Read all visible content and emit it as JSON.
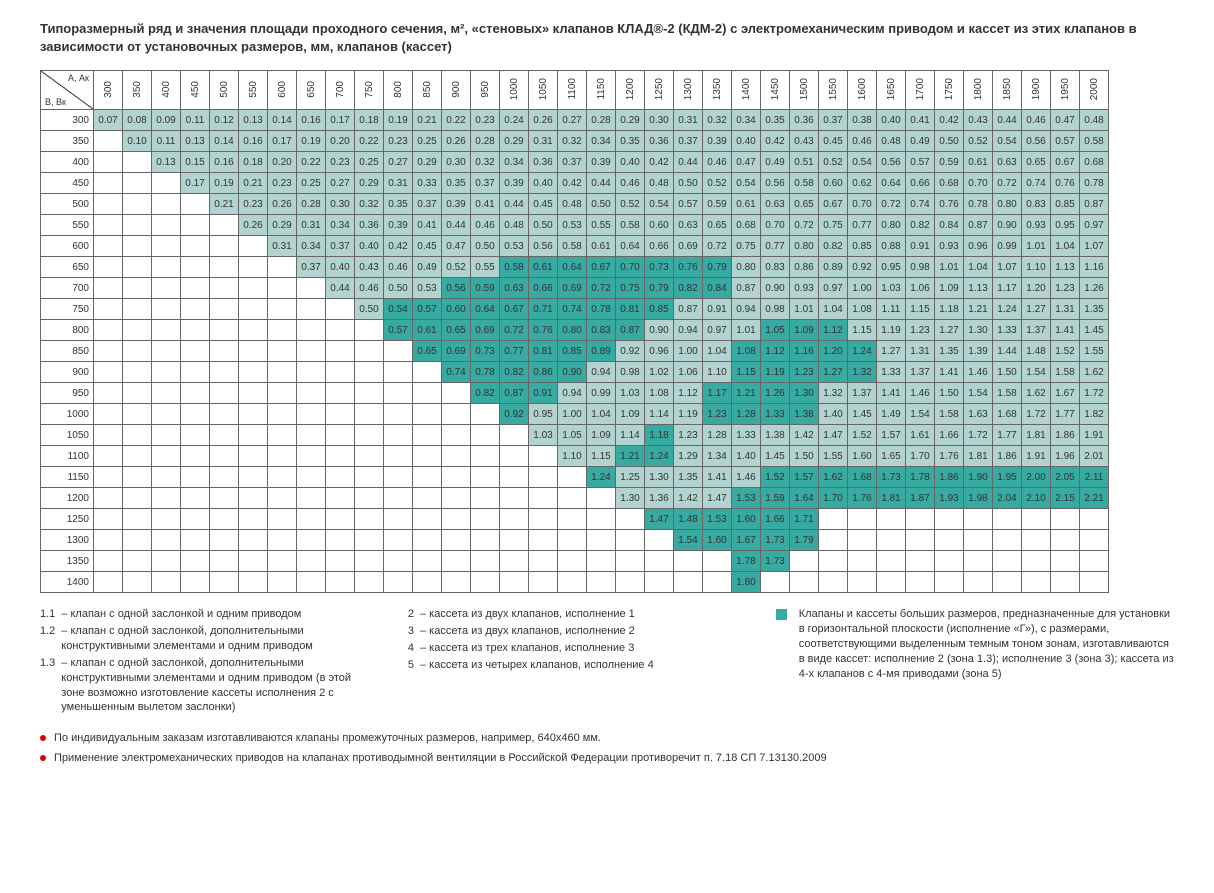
{
  "title": "Типоразмерный ряд и значения площади проходного сечения, м², «стеновых» клапанов КЛАД®-2 (КДМ-2) с электромеханическим приводом и кассет из этих клапанов в зависимости от установочных размеров, мм, клапанов (кассет)",
  "corner": {
    "top": "А, Ак",
    "bottom": "В, Вк"
  },
  "colors": {
    "light": "#b2d3cf",
    "dark": "#37aaa1",
    "border": "#666",
    "boundary": "#000"
  },
  "cols": [
    300,
    350,
    400,
    450,
    500,
    550,
    600,
    650,
    700,
    750,
    800,
    850,
    900,
    950,
    1000,
    1050,
    1100,
    1150,
    1200,
    1250,
    1300,
    1350,
    1400,
    1450,
    1500,
    1550,
    1600,
    1650,
    1700,
    1750,
    1800,
    1850,
    1900,
    1950,
    2000
  ],
  "rows": [
    300,
    350,
    400,
    450,
    500,
    550,
    600,
    650,
    700,
    750,
    800,
    850,
    900,
    950,
    1000,
    1050,
    1100,
    1150,
    1200,
    1250,
    1300,
    1350,
    1400
  ],
  "values": {
    "300": [
      0.07,
      0.08,
      0.09,
      0.11,
      0.12,
      0.13,
      0.14,
      0.16,
      0.17,
      0.18,
      0.19,
      0.21,
      0.22,
      0.23,
      0.24,
      0.26,
      0.27,
      0.28,
      0.29,
      0.3,
      0.31,
      0.32,
      0.34,
      0.35,
      0.36,
      0.37,
      0.38,
      0.4,
      0.41,
      0.42,
      0.43,
      0.44,
      0.46,
      0.47,
      0.48
    ],
    "350": [
      null,
      0.1,
      0.11,
      0.13,
      0.14,
      0.16,
      0.17,
      0.19,
      0.2,
      0.22,
      0.23,
      0.25,
      0.26,
      0.28,
      0.29,
      0.31,
      0.32,
      0.34,
      0.35,
      0.36,
      0.37,
      0.39,
      0.4,
      0.42,
      0.43,
      0.45,
      0.46,
      0.48,
      0.49,
      0.5,
      0.52,
      0.54,
      0.56,
      0.57,
      0.58
    ],
    "400": [
      null,
      null,
      0.13,
      0.15,
      0.16,
      0.18,
      0.2,
      0.22,
      0.23,
      0.25,
      0.27,
      0.29,
      0.3,
      0.32,
      0.34,
      0.36,
      0.37,
      0.39,
      0.4,
      0.42,
      0.44,
      0.46,
      0.47,
      0.49,
      0.51,
      0.52,
      0.54,
      0.56,
      0.57,
      0.59,
      0.61,
      0.63,
      0.65,
      0.67,
      0.68
    ],
    "450": [
      null,
      null,
      null,
      0.17,
      0.19,
      0.21,
      0.23,
      0.25,
      0.27,
      0.29,
      0.31,
      0.33,
      0.35,
      0.37,
      0.39,
      0.4,
      0.42,
      0.44,
      0.46,
      0.48,
      0.5,
      0.52,
      0.54,
      0.56,
      0.58,
      0.6,
      0.62,
      0.64,
      0.66,
      0.68,
      0.7,
      0.72,
      0.74,
      0.76,
      0.78
    ],
    "500": [
      null,
      null,
      null,
      null,
      0.21,
      0.23,
      0.26,
      0.28,
      0.3,
      0.32,
      0.35,
      0.37,
      0.39,
      0.41,
      0.44,
      0.45,
      0.48,
      0.5,
      0.52,
      0.54,
      0.57,
      0.59,
      0.61,
      0.63,
      0.65,
      0.67,
      0.7,
      0.72,
      0.74,
      0.76,
      0.78,
      0.8,
      0.83,
      0.85,
      0.87
    ],
    "550": [
      null,
      null,
      null,
      null,
      null,
      0.26,
      0.29,
      0.31,
      0.34,
      0.36,
      0.39,
      0.41,
      0.44,
      0.46,
      0.48,
      0.5,
      0.53,
      0.55,
      0.58,
      0.6,
      0.63,
      0.65,
      0.68,
      0.7,
      0.72,
      0.75,
      0.77,
      0.8,
      0.82,
      0.84,
      0.87,
      0.9,
      0.93,
      0.95,
      0.97
    ],
    "600": [
      null,
      null,
      null,
      null,
      null,
      null,
      0.31,
      0.34,
      0.37,
      0.4,
      0.42,
      0.45,
      0.47,
      0.5,
      0.53,
      0.56,
      0.58,
      0.61,
      0.64,
      0.66,
      0.69,
      0.72,
      0.75,
      0.77,
      0.8,
      0.82,
      0.85,
      0.88,
      0.91,
      0.93,
      0.96,
      0.99,
      1.01,
      1.04,
      1.07
    ],
    "650": [
      null,
      null,
      null,
      null,
      null,
      null,
      null,
      0.37,
      0.4,
      0.43,
      0.46,
      0.49,
      0.52,
      0.55,
      0.58,
      0.61,
      0.64,
      0.67,
      0.7,
      0.73,
      0.76,
      0.79,
      0.8,
      0.83,
      0.86,
      0.89,
      0.92,
      0.95,
      0.98,
      1.01,
      1.04,
      1.07,
      1.1,
      1.13,
      1.16
    ],
    "700": [
      null,
      null,
      null,
      null,
      null,
      null,
      null,
      null,
      0.44,
      0.46,
      0.5,
      0.53,
      0.56,
      0.59,
      0.63,
      0.66,
      0.69,
      0.72,
      0.75,
      0.79,
      0.82,
      0.84,
      0.87,
      0.9,
      0.93,
      0.97,
      1.0,
      1.03,
      1.06,
      1.09,
      1.13,
      1.17,
      1.2,
      1.23,
      1.26
    ],
    "750": [
      null,
      null,
      null,
      null,
      null,
      null,
      null,
      null,
      null,
      0.5,
      0.54,
      0.57,
      0.6,
      0.64,
      0.67,
      0.71,
      0.74,
      0.78,
      0.81,
      0.85,
      0.87,
      0.91,
      0.94,
      0.98,
      1.01,
      1.04,
      1.08,
      1.11,
      1.15,
      1.18,
      1.21,
      1.24,
      1.27,
      1.31,
      1.35
    ],
    "800": [
      null,
      null,
      null,
      null,
      null,
      null,
      null,
      null,
      null,
      null,
      0.57,
      0.61,
      0.65,
      0.69,
      0.72,
      0.76,
      0.8,
      0.83,
      0.87,
      0.9,
      0.94,
      0.97,
      1.01,
      1.05,
      1.09,
      1.12,
      1.15,
      1.19,
      1.23,
      1.27,
      1.3,
      1.33,
      1.37,
      1.41,
      1.45
    ],
    "850": [
      null,
      null,
      null,
      null,
      null,
      null,
      null,
      null,
      null,
      null,
      null,
      0.65,
      0.69,
      0.73,
      0.77,
      0.81,
      0.85,
      0.89,
      0.92,
      0.96,
      1.0,
      1.04,
      1.08,
      1.12,
      1.16,
      1.2,
      1.24,
      1.27,
      1.31,
      1.35,
      1.39,
      1.44,
      1.48,
      1.52,
      1.55
    ],
    "900": [
      null,
      null,
      null,
      null,
      null,
      null,
      null,
      null,
      null,
      null,
      null,
      null,
      0.74,
      0.78,
      0.82,
      0.86,
      0.9,
      0.94,
      0.98,
      1.02,
      1.06,
      1.1,
      1.15,
      1.19,
      1.23,
      1.27,
      1.32,
      1.33,
      1.37,
      1.41,
      1.46,
      1.5,
      1.54,
      1.58,
      1.62
    ],
    "950": [
      null,
      null,
      null,
      null,
      null,
      null,
      null,
      null,
      null,
      null,
      null,
      null,
      null,
      0.82,
      0.87,
      0.91,
      0.94,
      0.99,
      1.03,
      1.08,
      1.12,
      1.17,
      1.21,
      1.26,
      1.3,
      1.32,
      1.37,
      1.41,
      1.46,
      1.5,
      1.54,
      1.58,
      1.62,
      1.67,
      1.72
    ],
    "1000": [
      null,
      null,
      null,
      null,
      null,
      null,
      null,
      null,
      null,
      null,
      null,
      null,
      null,
      null,
      0.92,
      0.95,
      1.0,
      1.04,
      1.09,
      1.14,
      1.19,
      1.23,
      1.28,
      1.33,
      1.38,
      1.4,
      1.45,
      1.49,
      1.54,
      1.58,
      1.63,
      1.68,
      1.72,
      1.77,
      1.82
    ],
    "1050": [
      null,
      null,
      null,
      null,
      null,
      null,
      null,
      null,
      null,
      null,
      null,
      null,
      null,
      null,
      null,
      1.03,
      1.05,
      1.09,
      1.14,
      1.18,
      1.23,
      1.28,
      1.33,
      1.38,
      1.42,
      1.47,
      1.52,
      1.57,
      1.61,
      1.66,
      1.72,
      1.77,
      1.81,
      1.86,
      1.91
    ],
    "1100": [
      null,
      null,
      null,
      null,
      null,
      null,
      null,
      null,
      null,
      null,
      null,
      null,
      null,
      null,
      null,
      null,
      1.1,
      1.15,
      1.21,
      1.24,
      1.29,
      1.34,
      1.4,
      1.45,
      1.5,
      1.55,
      1.6,
      1.65,
      1.7,
      1.76,
      1.81,
      1.86,
      1.91,
      1.96,
      2.01
    ],
    "1150": [
      null,
      null,
      null,
      null,
      null,
      null,
      null,
      null,
      null,
      null,
      null,
      null,
      null,
      null,
      null,
      null,
      null,
      1.24,
      1.25,
      1.3,
      1.35,
      1.41,
      1.46,
      1.52,
      1.57,
      1.62,
      1.68,
      1.73,
      1.78,
      1.86,
      1.9,
      1.95,
      2.0,
      2.05,
      2.11
    ],
    "1200": [
      null,
      null,
      null,
      null,
      null,
      null,
      null,
      null,
      null,
      null,
      null,
      null,
      null,
      null,
      null,
      null,
      null,
      null,
      1.3,
      1.36,
      1.42,
      1.47,
      1.53,
      1.59,
      1.64,
      1.7,
      1.76,
      1.81,
      1.87,
      1.93,
      1.98,
      2.04,
      2.1,
      2.15,
      2.21
    ],
    "1250": [
      null,
      null,
      null,
      null,
      null,
      null,
      null,
      null,
      null,
      null,
      null,
      null,
      null,
      null,
      null,
      null,
      null,
      null,
      null,
      1.47,
      1.48,
      1.53,
      1.6,
      1.66,
      1.71,
      null,
      null,
      null,
      null,
      null,
      null,
      null,
      null,
      null,
      null
    ],
    "1300": [
      null,
      null,
      null,
      null,
      null,
      null,
      null,
      null,
      null,
      null,
      null,
      null,
      null,
      null,
      null,
      null,
      null,
      null,
      null,
      null,
      1.54,
      1.6,
      1.67,
      1.73,
      1.79,
      null,
      null,
      null,
      null,
      null,
      null,
      null,
      null,
      null,
      null
    ],
    "1350": [
      null,
      null,
      null,
      null,
      null,
      null,
      null,
      null,
      null,
      null,
      null,
      null,
      null,
      null,
      null,
      null,
      null,
      null,
      null,
      null,
      null,
      null,
      1.78,
      1.73,
      null,
      null,
      null,
      null,
      null,
      null,
      null,
      null,
      null,
      null,
      null
    ],
    "1400": [
      null,
      null,
      null,
      null,
      null,
      null,
      null,
      null,
      null,
      null,
      null,
      null,
      null,
      null,
      null,
      null,
      null,
      null,
      null,
      null,
      null,
      null,
      1.8,
      null,
      null,
      null,
      null,
      null,
      null,
      null,
      null,
      null,
      null,
      null,
      null
    ]
  },
  "darkZones": [
    {
      "row": 650,
      "from": 1000,
      "to": 1350
    },
    {
      "row": 700,
      "from": 900,
      "to": 1350
    },
    {
      "row": 750,
      "from": 800,
      "to": 1250
    },
    {
      "row": 800,
      "from": 800,
      "to": 1200
    },
    {
      "row": 850,
      "from": 850,
      "to": 1150
    },
    {
      "row": 900,
      "from": 900,
      "to": 1100
    },
    {
      "row": 950,
      "from": 950,
      "to": 1050
    },
    {
      "row": 1000,
      "from": 1000,
      "to": 1000
    },
    {
      "row": 800,
      "from": 1450,
      "to": 1550
    },
    {
      "row": 850,
      "from": 1400,
      "to": 1600
    },
    {
      "row": 900,
      "from": 1400,
      "to": 1600
    },
    {
      "row": 950,
      "from": 1350,
      "to": 1500
    },
    {
      "row": 1000,
      "from": 1350,
      "to": 1500
    },
    {
      "row": 1050,
      "from": 1250,
      "to": 1250
    },
    {
      "row": 1100,
      "from": 1200,
      "to": 1250
    },
    {
      "row": 1150,
      "from": 1150,
      "to": 1150
    },
    {
      "row": 1150,
      "from": 1450,
      "to": 2000
    },
    {
      "row": 1200,
      "from": 1400,
      "to": 2000
    },
    {
      "row": 1250,
      "from": 1250,
      "to": 1500
    },
    {
      "row": 1300,
      "from": 1300,
      "to": 1500
    },
    {
      "row": 1350,
      "from": 1400,
      "to": 1450
    },
    {
      "row": 1400,
      "from": 1400,
      "to": 1400
    }
  ],
  "legend": {
    "col1": [
      [
        "1.1",
        "– клапан с одной заслонкой и одним приводом"
      ],
      [
        "1.2",
        "– клапан с одной заслонкой, дополнительными конструктивными элементами и одним приводом"
      ],
      [
        "1.3",
        "– клапан с одной заслонкой, дополнительными конструктивными элементами и одним приводом (в этой зоне возможно изготовление кассеты исполнения 2 с уменьшенным вылетом заслонки)"
      ]
    ],
    "col2": [
      [
        "2",
        "– кассета из двух клапанов, исполнение 1"
      ],
      [
        "3",
        "– кассета из двух клапанов, исполнение 2"
      ],
      [
        "4",
        "– кассета из трех клапанов, исполнение 3"
      ],
      [
        "5",
        "– кассета из четырех клапанов, исполнение 4"
      ]
    ],
    "col3": "Клапаны и кассеты больших размеров, предназначенные для установки в горизонтальной плоскости (исполнение «Г»), с размерами, соответствующими выделенным темным тоном зонам, изготавливаются в виде кассет: исполнение 2 (зона 1.3); исполнение 3 (зона 3); кассета из 4-х клапанов с 4-мя приводами (зона 5)"
  },
  "bullets": [
    "По индивидуальным заказам изготавливаются клапаны промежуточных размеров, например, 640х460 мм.",
    "Применение электромеханических приводов на клапанах противодымной вентиляции в Российской Федерации противоречит п. 7.18 СП 7.13130.2009"
  ]
}
